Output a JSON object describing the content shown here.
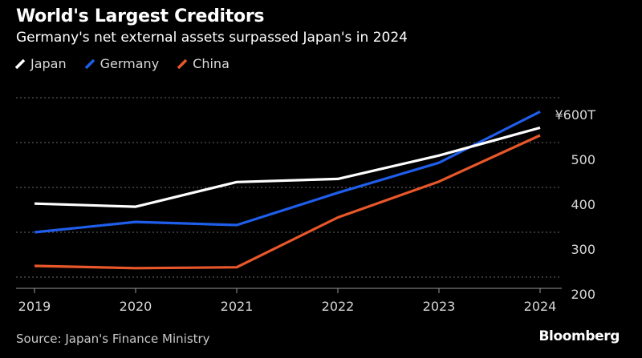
{
  "chart_data": {
    "type": "line",
    "title": "World's Largest Creditors",
    "subtitle": "Germany's net external assets surpassed Japan's in 2024",
    "categories": [
      "2019",
      "2020",
      "2021",
      "2022",
      "2023",
      "2024"
    ],
    "series": [
      {
        "name": "Japan",
        "color": "#ffffff",
        "values": [
          364,
          357,
          412,
          419,
          471,
          533
        ]
      },
      {
        "name": "Germany",
        "color": "#1f5eea",
        "values": [
          300,
          323,
          316,
          388,
          455,
          569
        ]
      },
      {
        "name": "China",
        "color": "#e8572a",
        "values": [
          225,
          220,
          222,
          333,
          413,
          516
        ]
      }
    ],
    "ylim": [
      175,
      600
    ],
    "yticks": [
      200,
      300,
      400,
      500,
      600
    ],
    "ytick_labels": [
      "200",
      "300",
      "400",
      "500",
      "¥600T"
    ],
    "xlabel": "",
    "ylabel": "",
    "grid": true,
    "legend_position": "top-left"
  },
  "footer": {
    "source": "Source: Japan's Finance Ministry",
    "brand": "Bloomberg"
  }
}
